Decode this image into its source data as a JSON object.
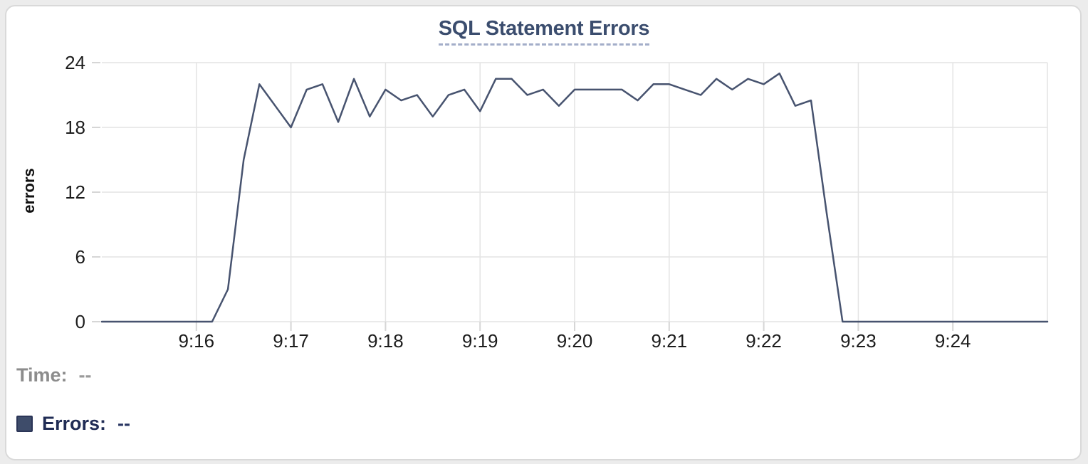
{
  "title": {
    "text": "SQL Statement Errors",
    "color": "#3b4d6e",
    "underline_color": "#a3aec9"
  },
  "readout": {
    "time_label": "Time:",
    "time_value": "--",
    "errors_label": "Errors:",
    "errors_value": "--",
    "swatch_color": "#3e4c6a"
  },
  "chart_data": {
    "type": "line",
    "title": "SQL Statement Errors",
    "xlabel": "",
    "ylabel": "errors",
    "ylim": [
      0,
      24
    ],
    "y_ticks": [
      0,
      6,
      12,
      18,
      24
    ],
    "x_ticks": [
      "9:16",
      "9:17",
      "9:18",
      "9:19",
      "9:20",
      "9:21",
      "9:22",
      "9:23",
      "9:24"
    ],
    "x_range": [
      "9:15:00",
      "9:25:00"
    ],
    "grid": true,
    "legend_position": "bottom-left",
    "line_color": "#47536f",
    "grid_color": "#e4e4e4",
    "tick_color": "#d6d6d6",
    "axis_text_color": "#1c1c1c",
    "series": [
      {
        "name": "Errors",
        "points": [
          [
            "9:15:00",
            0
          ],
          [
            "9:15:10",
            0
          ],
          [
            "9:15:20",
            0
          ],
          [
            "9:15:30",
            0
          ],
          [
            "9:15:40",
            0
          ],
          [
            "9:15:50",
            0
          ],
          [
            "9:16:00",
            0
          ],
          [
            "9:16:10",
            0
          ],
          [
            "9:16:20",
            3
          ],
          [
            "9:16:30",
            15
          ],
          [
            "9:16:40",
            22
          ],
          [
            "9:16:50",
            20
          ],
          [
            "9:17:00",
            18
          ],
          [
            "9:17:10",
            21.5
          ],
          [
            "9:17:20",
            22
          ],
          [
            "9:17:30",
            18.5
          ],
          [
            "9:17:40",
            22.5
          ],
          [
            "9:17:50",
            19
          ],
          [
            "9:18:00",
            21.5
          ],
          [
            "9:18:10",
            20.5
          ],
          [
            "9:18:20",
            21
          ],
          [
            "9:18:30",
            19
          ],
          [
            "9:18:40",
            21
          ],
          [
            "9:18:50",
            21.5
          ],
          [
            "9:19:00",
            19.5
          ],
          [
            "9:19:10",
            22.5
          ],
          [
            "9:19:20",
            22.5
          ],
          [
            "9:19:30",
            21
          ],
          [
            "9:19:40",
            21.5
          ],
          [
            "9:19:50",
            20
          ],
          [
            "9:20:00",
            21.5
          ],
          [
            "9:20:10",
            21.5
          ],
          [
            "9:20:20",
            21.5
          ],
          [
            "9:20:30",
            21.5
          ],
          [
            "9:20:40",
            20.5
          ],
          [
            "9:20:50",
            22
          ],
          [
            "9:21:00",
            22
          ],
          [
            "9:21:10",
            21.5
          ],
          [
            "9:21:20",
            21
          ],
          [
            "9:21:30",
            22.5
          ],
          [
            "9:21:40",
            21.5
          ],
          [
            "9:21:50",
            22.5
          ],
          [
            "9:22:00",
            22
          ],
          [
            "9:22:10",
            23
          ],
          [
            "9:22:20",
            20
          ],
          [
            "9:22:30",
            20.5
          ],
          [
            "9:22:40",
            10
          ],
          [
            "9:22:50",
            0
          ],
          [
            "9:23:00",
            0
          ],
          [
            "9:23:10",
            0
          ],
          [
            "9:23:20",
            0
          ],
          [
            "9:23:30",
            0
          ],
          [
            "9:23:40",
            0
          ],
          [
            "9:23:50",
            0
          ],
          [
            "9:24:00",
            0
          ],
          [
            "9:24:10",
            0
          ],
          [
            "9:24:20",
            0
          ],
          [
            "9:24:30",
            0
          ],
          [
            "9:24:40",
            0
          ],
          [
            "9:24:50",
            0
          ],
          [
            "9:25:00",
            0
          ]
        ]
      }
    ]
  }
}
